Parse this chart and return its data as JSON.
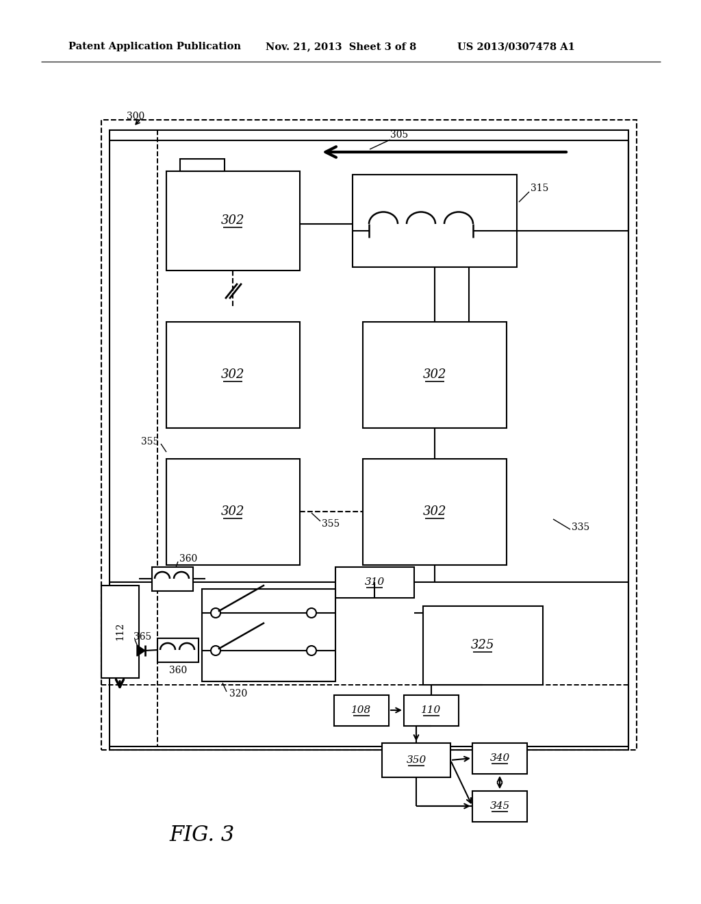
{
  "bg_color": "#ffffff",
  "header_left": "Patent Application Publication",
  "header_mid": "Nov. 21, 2013  Sheet 3 of 8",
  "header_right": "US 2013/0307478 A1",
  "fig_label": "FIG. 3"
}
